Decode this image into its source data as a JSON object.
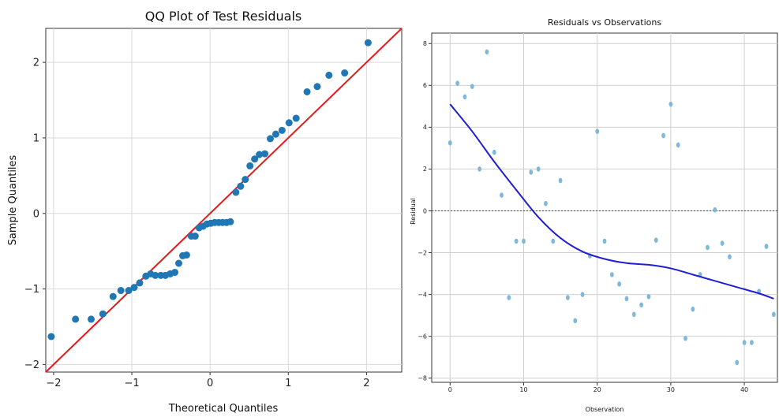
{
  "chart_data": [
    {
      "type": "scatter",
      "title": "QQ Plot of Test Residuals",
      "xlabel": "Theoretical Quantiles",
      "ylabel": "Sample Quantiles",
      "xlim": [
        -2.1,
        2.45
      ],
      "ylim": [
        -2.1,
        2.45
      ],
      "xticks": [
        -2,
        -1,
        0,
        1,
        2
      ],
      "yticks": [
        -2,
        -1,
        0,
        1,
        2
      ],
      "xtick_labels": [
        "−2",
        "−1",
        "0",
        "1",
        "2"
      ],
      "ytick_labels": [
        "−2",
        "−1",
        "0",
        "1",
        "2"
      ],
      "grid": true,
      "colors": {
        "points": "#1f77b4",
        "reference_line": "#e41a1c"
      },
      "points": [
        {
          "x": -2.03,
          "y": -1.63
        },
        {
          "x": -1.72,
          "y": -1.4
        },
        {
          "x": -1.52,
          "y": -1.4
        },
        {
          "x": -1.37,
          "y": -1.33
        },
        {
          "x": -1.24,
          "y": -1.1
        },
        {
          "x": -1.14,
          "y": -1.02
        },
        {
          "x": -1.04,
          "y": -1.02
        },
        {
          "x": -0.97,
          "y": -0.98
        },
        {
          "x": -0.9,
          "y": -0.92
        },
        {
          "x": -0.82,
          "y": -0.83
        },
        {
          "x": -0.76,
          "y": -0.8
        },
        {
          "x": -0.7,
          "y": -0.82
        },
        {
          "x": -0.63,
          "y": -0.82
        },
        {
          "x": -0.57,
          "y": -0.82
        },
        {
          "x": -0.51,
          "y": -0.8
        },
        {
          "x": -0.45,
          "y": -0.78
        },
        {
          "x": -0.4,
          "y": -0.66
        },
        {
          "x": -0.35,
          "y": -0.56
        },
        {
          "x": -0.3,
          "y": -0.55
        },
        {
          "x": -0.24,
          "y": -0.3
        },
        {
          "x": -0.19,
          "y": -0.3
        },
        {
          "x": -0.14,
          "y": -0.19
        },
        {
          "x": -0.09,
          "y": -0.17
        },
        {
          "x": -0.04,
          "y": -0.14
        },
        {
          "x": 0.01,
          "y": -0.13
        },
        {
          "x": 0.06,
          "y": -0.12
        },
        {
          "x": 0.11,
          "y": -0.12
        },
        {
          "x": 0.16,
          "y": -0.12
        },
        {
          "x": 0.21,
          "y": -0.12
        },
        {
          "x": 0.26,
          "y": -0.11
        },
        {
          "x": 0.33,
          "y": 0.28
        },
        {
          "x": 0.39,
          "y": 0.36
        },
        {
          "x": 0.45,
          "y": 0.45
        },
        {
          "x": 0.51,
          "y": 0.63
        },
        {
          "x": 0.57,
          "y": 0.72
        },
        {
          "x": 0.63,
          "y": 0.78
        },
        {
          "x": 0.7,
          "y": 0.79
        },
        {
          "x": 0.77,
          "y": 0.99
        },
        {
          "x": 0.84,
          "y": 1.05
        },
        {
          "x": 0.92,
          "y": 1.1
        },
        {
          "x": 1.01,
          "y": 1.2
        },
        {
          "x": 1.1,
          "y": 1.26
        },
        {
          "x": 1.24,
          "y": 1.61
        },
        {
          "x": 1.37,
          "y": 1.68
        },
        {
          "x": 1.52,
          "y": 1.83
        },
        {
          "x": 1.72,
          "y": 1.86
        },
        {
          "x": 2.02,
          "y": 2.26
        }
      ],
      "reference_line": {
        "slope": 1,
        "intercept": 0
      }
    },
    {
      "type": "scatter",
      "title": "Residuals vs Observations",
      "xlabel": "Observation",
      "ylabel": "Residual",
      "xlim": [
        -2.5,
        44.5
      ],
      "ylim": [
        -8.2,
        8.5
      ],
      "xticks": [
        0,
        10,
        20,
        30,
        40
      ],
      "yticks": [
        -8,
        -6,
        -4,
        -2,
        0,
        2,
        4,
        6,
        8
      ],
      "xtick_labels": [
        "0",
        "10",
        "20",
        "30",
        "40"
      ],
      "ytick_labels": [
        "−8",
        "−6",
        "−4",
        "−2",
        "0",
        "2",
        "4",
        "6",
        "8"
      ],
      "grid": true,
      "zero_line": true,
      "colors": {
        "points": "#7fb8d8",
        "smooth_line": "#1f1fcf",
        "zero_line": "#444444"
      },
      "points": [
        {
          "x": 0,
          "y": 3.25
        },
        {
          "x": 1,
          "y": 6.1
        },
        {
          "x": 2,
          "y": 5.45
        },
        {
          "x": 3,
          "y": 5.95
        },
        {
          "x": 4,
          "y": 2.0
        },
        {
          "x": 5,
          "y": 7.6
        },
        {
          "x": 6,
          "y": 2.8
        },
        {
          "x": 7,
          "y": 0.75
        },
        {
          "x": 8,
          "y": -4.15
        },
        {
          "x": 9,
          "y": -1.45
        },
        {
          "x": 10,
          "y": -1.45
        },
        {
          "x": 11,
          "y": 1.85
        },
        {
          "x": 12,
          "y": 2.0
        },
        {
          "x": 13,
          "y": 0.35
        },
        {
          "x": 14,
          "y": -1.45
        },
        {
          "x": 15,
          "y": 1.45
        },
        {
          "x": 16,
          "y": -4.15
        },
        {
          "x": 17,
          "y": -5.25
        },
        {
          "x": 18,
          "y": -4.0
        },
        {
          "x": 19,
          "y": -2.15
        },
        {
          "x": 20,
          "y": 3.8
        },
        {
          "x": 21,
          "y": -1.45
        },
        {
          "x": 22,
          "y": -3.05
        },
        {
          "x": 23,
          "y": -3.5
        },
        {
          "x": 24,
          "y": -4.2
        },
        {
          "x": 25,
          "y": -4.95
        },
        {
          "x": 26,
          "y": -4.5
        },
        {
          "x": 27,
          "y": -4.1
        },
        {
          "x": 28,
          "y": -1.4
        },
        {
          "x": 29,
          "y": 3.6
        },
        {
          "x": 30,
          "y": 5.1
        },
        {
          "x": 31,
          "y": 3.15
        },
        {
          "x": 32,
          "y": -6.1
        },
        {
          "x": 33,
          "y": -4.7
        },
        {
          "x": 34,
          "y": -3.05
        },
        {
          "x": 35,
          "y": -1.75
        },
        {
          "x": 36,
          "y": 0.05
        },
        {
          "x": 37,
          "y": -1.55
        },
        {
          "x": 38,
          "y": -2.2
        },
        {
          "x": 39,
          "y": -7.25
        },
        {
          "x": 40,
          "y": -6.3
        },
        {
          "x": 41,
          "y": -6.3
        },
        {
          "x": 42,
          "y": -3.85
        },
        {
          "x": 43,
          "y": -1.7
        },
        {
          "x": 44,
          "y": -4.95
        }
      ],
      "smooth_curve": [
        {
          "x": 0,
          "y": 5.1
        },
        {
          "x": 3,
          "y": 3.8
        },
        {
          "x": 6,
          "y": 2.35
        },
        {
          "x": 9,
          "y": 1.0
        },
        {
          "x": 12,
          "y": -0.3
        },
        {
          "x": 15,
          "y": -1.3
        },
        {
          "x": 18,
          "y": -1.95
        },
        {
          "x": 21,
          "y": -2.3
        },
        {
          "x": 24,
          "y": -2.5
        },
        {
          "x": 27,
          "y": -2.58
        },
        {
          "x": 30,
          "y": -2.75
        },
        {
          "x": 33,
          "y": -3.05
        },
        {
          "x": 36,
          "y": -3.35
        },
        {
          "x": 39,
          "y": -3.65
        },
        {
          "x": 42,
          "y": -3.95
        },
        {
          "x": 44,
          "y": -4.2
        }
      ]
    }
  ]
}
